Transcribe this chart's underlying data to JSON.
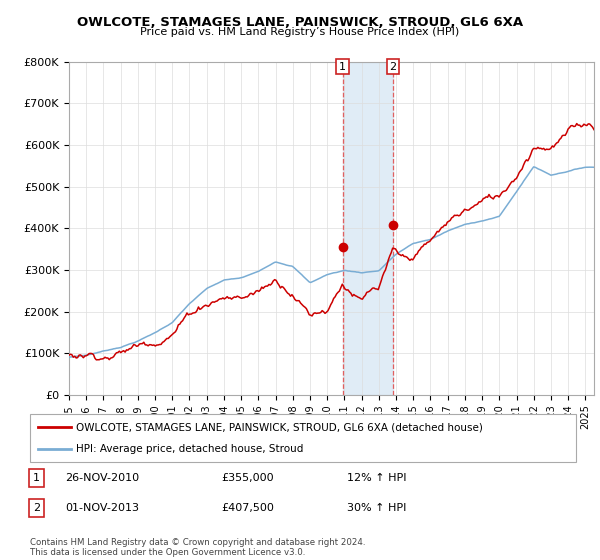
{
  "title": "OWLCOTE, STAMAGES LANE, PAINSWICK, STROUD, GL6 6XA",
  "subtitle": "Price paid vs. HM Land Registry’s House Price Index (HPI)",
  "legend_line1": "OWLCOTE, STAMAGES LANE, PAINSWICK, STROUD, GL6 6XA (detached house)",
  "legend_line2": "HPI: Average price, detached house, Stroud",
  "annotation1_label": "1",
  "annotation1_date": "26-NOV-2010",
  "annotation1_price": "£355,000",
  "annotation1_hpi": "12% ↑ HPI",
  "annotation2_label": "2",
  "annotation2_date": "01-NOV-2013",
  "annotation2_price": "£407,500",
  "annotation2_hpi": "30% ↑ HPI",
  "footer": "Contains HM Land Registry data © Crown copyright and database right 2024.\nThis data is licensed under the Open Government Licence v3.0.",
  "xmin": 1995.0,
  "xmax": 2025.5,
  "ymin": 0,
  "ymax": 800000,
  "yticks": [
    0,
    100000,
    200000,
    300000,
    400000,
    500000,
    600000,
    700000,
    800000
  ],
  "ytick_labels": [
    "£0",
    "£100K",
    "£200K",
    "£300K",
    "£400K",
    "£500K",
    "£600K",
    "£700K",
    "£800K"
  ],
  "line_color_red": "#cc0000",
  "line_color_blue": "#7aadd4",
  "shaded_color": "#cce0f0",
  "vline_color": "#e06060",
  "point1_x": 2010.9,
  "point1_y": 355000,
  "point2_x": 2013.83,
  "point2_y": 407500,
  "background_color": "#ffffff",
  "grid_color": "#dddddd",
  "xtick_years": [
    1995,
    1996,
    1997,
    1998,
    1999,
    2000,
    2001,
    2002,
    2003,
    2004,
    2005,
    2006,
    2007,
    2008,
    2009,
    2010,
    2011,
    2012,
    2013,
    2014,
    2015,
    2016,
    2017,
    2018,
    2019,
    2020,
    2021,
    2022,
    2023,
    2024,
    2025
  ]
}
